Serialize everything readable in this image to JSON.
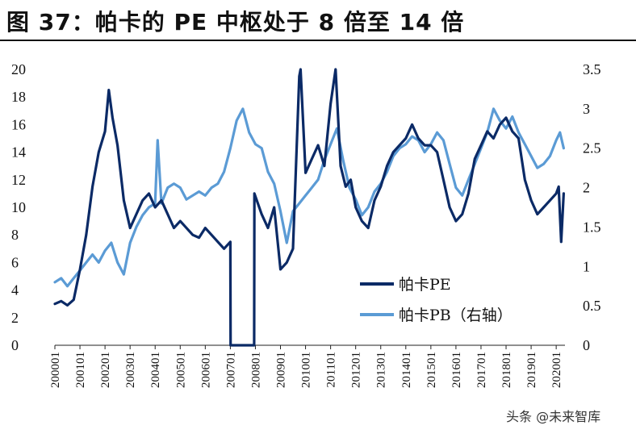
{
  "title": "图 37：帕卡的 PE 中枢处于 8 倍至 14 倍",
  "watermark": "头条 @未来智库",
  "colors": {
    "pe": "#0b2a66",
    "pb": "#5b9bd5"
  },
  "chart_data": {
    "type": "line",
    "left_axis": {
      "ylim": [
        0,
        20
      ],
      "ticks": [
        "0",
        "2",
        "4",
        "6",
        "8",
        "10",
        "12",
        "14",
        "16",
        "18",
        "20"
      ]
    },
    "right_axis": {
      "ylim": [
        0,
        3.5
      ],
      "ticks": [
        "0",
        "0.5",
        "1",
        "1.5",
        "2",
        "2.5",
        "3",
        "3.5"
      ]
    },
    "x_tick_labels": [
      "200001",
      "200101",
      "200201",
      "200301",
      "200401",
      "200501",
      "200601",
      "200701",
      "200801",
      "200901",
      "201001",
      "201101",
      "201201",
      "201301",
      "201401",
      "201501",
      "201601",
      "201701",
      "201801",
      "201901",
      "202001"
    ],
    "legend": [
      "帕卡PE",
      "帕卡PB（右轴）"
    ],
    "legend_position": "lower-center",
    "series": [
      {
        "name": "帕卡PE",
        "axis": "left",
        "x": [
          2000.0,
          2000.25,
          2000.5,
          2000.75,
          2001.0,
          2001.25,
          2001.5,
          2001.75,
          2002.0,
          2002.15,
          2002.3,
          2002.5,
          2002.75,
          2003.0,
          2003.25,
          2003.5,
          2003.75,
          2004.0,
          2004.25,
          2004.5,
          2004.75,
          2005.0,
          2005.25,
          2005.5,
          2005.75,
          2006.0,
          2006.25,
          2006.5,
          2006.75,
          2007.0,
          2007.01,
          2007.3,
          2007.6,
          2007.95,
          2007.96,
          2008.25,
          2008.5,
          2008.75,
          2009.0,
          2009.25,
          2009.5,
          2009.75,
          2009.8,
          2010.0,
          2010.25,
          2010.5,
          2010.75,
          2011.0,
          2011.2,
          2011.4,
          2011.6,
          2011.8,
          2012.0,
          2012.25,
          2012.5,
          2012.75,
          2013.0,
          2013.25,
          2013.5,
          2013.75,
          2014.0,
          2014.25,
          2014.5,
          2014.75,
          2015.0,
          2015.25,
          2015.5,
          2015.75,
          2016.0,
          2016.25,
          2016.5,
          2016.75,
          2017.0,
          2017.25,
          2017.5,
          2017.75,
          2018.0,
          2018.25,
          2018.5,
          2018.75,
          2019.0,
          2019.25,
          2019.5,
          2019.75,
          2020.0,
          2020.1,
          2020.2,
          2020.3
        ],
        "values": [
          3.0,
          3.2,
          2.9,
          3.3,
          5.5,
          8.0,
          11.5,
          14.0,
          15.5,
          18.5,
          16.5,
          14.5,
          10.5,
          8.5,
          9.5,
          10.5,
          11.0,
          10.0,
          10.5,
          9.5,
          8.5,
          9.0,
          8.5,
          8.0,
          7.8,
          8.5,
          8.0,
          7.5,
          7.0,
          7.5,
          0,
          0,
          0,
          0,
          11.0,
          9.5,
          8.5,
          10.0,
          5.5,
          6.0,
          7.0,
          19.5,
          20,
          12.5,
          13.5,
          14.5,
          13.0,
          17.5,
          20,
          13.0,
          11.5,
          12.0,
          10.0,
          9.0,
          8.5,
          10.5,
          11.5,
          13.0,
          14.0,
          14.5,
          15.0,
          16.0,
          15.0,
          14.5,
          14.5,
          14.0,
          12.0,
          10.0,
          9.0,
          9.5,
          11.0,
          13.5,
          14.5,
          15.5,
          15.0,
          16.0,
          16.5,
          15.5,
          15.0,
          12.0,
          10.5,
          9.5,
          10.0,
          10.5,
          11.0,
          11.5,
          7.5,
          11.0
        ]
      },
      {
        "name": "帕卡PB（右轴）",
        "axis": "right",
        "x": [
          2000.0,
          2000.25,
          2000.5,
          2000.75,
          2001.0,
          2001.25,
          2001.5,
          2001.75,
          2002.0,
          2002.25,
          2002.5,
          2002.75,
          2003.0,
          2003.25,
          2003.5,
          2003.75,
          2004.0,
          2004.1,
          2004.25,
          2004.5,
          2004.75,
          2005.0,
          2005.25,
          2005.5,
          2005.75,
          2006.0,
          2006.25,
          2006.5,
          2006.75,
          2007.0,
          2007.25,
          2007.5,
          2007.75,
          2008.0,
          2008.25,
          2008.5,
          2008.75,
          2009.0,
          2009.25,
          2009.5,
          2009.75,
          2010.0,
          2010.25,
          2010.5,
          2010.75,
          2011.0,
          2011.25,
          2011.5,
          2011.75,
          2012.0,
          2012.25,
          2012.5,
          2012.75,
          2013.0,
          2013.25,
          2013.5,
          2013.75,
          2014.0,
          2014.25,
          2014.5,
          2014.75,
          2015.0,
          2015.25,
          2015.5,
          2015.75,
          2016.0,
          2016.25,
          2016.5,
          2016.75,
          2017.0,
          2017.25,
          2017.5,
          2017.75,
          2018.0,
          2018.25,
          2018.5,
          2018.75,
          2019.0,
          2019.25,
          2019.5,
          2019.75,
          2020.0,
          2020.15,
          2020.3
        ],
        "values": [
          0.8,
          0.85,
          0.75,
          0.85,
          0.95,
          1.05,
          1.15,
          1.05,
          1.2,
          1.3,
          1.05,
          0.9,
          1.3,
          1.5,
          1.65,
          1.75,
          1.8,
          2.6,
          1.8,
          2.0,
          2.05,
          2.0,
          1.85,
          1.9,
          1.95,
          1.9,
          2.0,
          2.05,
          2.2,
          2.5,
          2.85,
          3.0,
          2.7,
          2.55,
          2.5,
          2.2,
          2.05,
          1.7,
          1.3,
          1.7,
          1.8,
          1.9,
          2.0,
          2.1,
          2.35,
          2.55,
          2.75,
          2.35,
          2.0,
          1.85,
          1.65,
          1.75,
          1.95,
          2.05,
          2.2,
          2.4,
          2.5,
          2.55,
          2.65,
          2.6,
          2.45,
          2.55,
          2.7,
          2.6,
          2.3,
          2.0,
          1.9,
          2.1,
          2.3,
          2.5,
          2.7,
          3.0,
          2.85,
          2.75,
          2.9,
          2.7,
          2.55,
          2.4,
          2.25,
          2.3,
          2.4,
          2.6,
          2.7,
          2.5
        ]
      }
    ]
  }
}
